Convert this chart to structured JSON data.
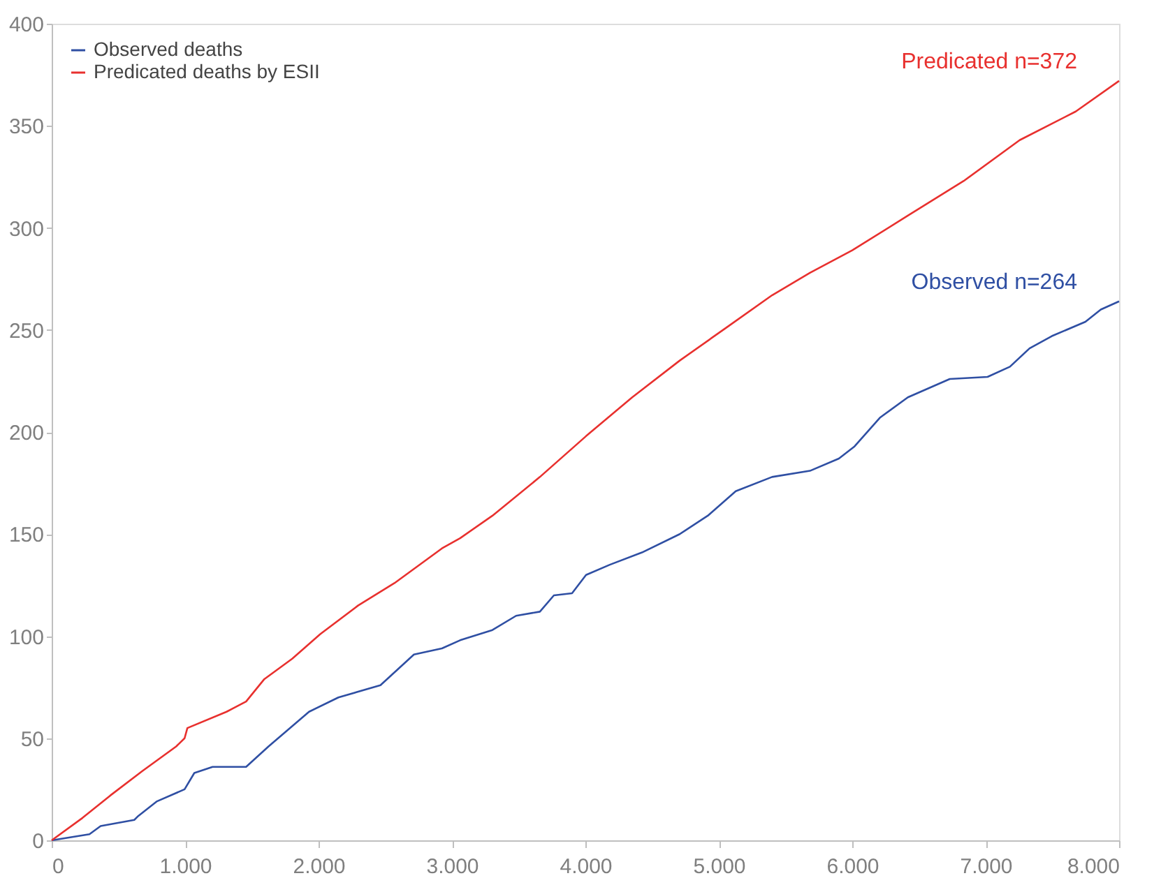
{
  "chart_data": {
    "type": "line",
    "xlim": [
      0,
      8000
    ],
    "ylim": [
      0,
      400
    ],
    "xticks": [
      0,
      {
        "value": 1000,
        "label": "1.000"
      },
      {
        "value": 2000,
        "label": "2.000"
      },
      {
        "value": 3000,
        "label": "3.000"
      },
      {
        "value": 4000,
        "label": "4.000"
      },
      {
        "value": 5000,
        "label": "5.000"
      },
      {
        "value": 6000,
        "label": "6.000"
      },
      {
        "value": 7000,
        "label": "7.000"
      },
      {
        "value": 8000,
        "label": "8.000"
      }
    ],
    "yticks": [
      0,
      50,
      100,
      150,
      200,
      250,
      300,
      350,
      400
    ],
    "grid": false,
    "legend": "top left",
    "marker": "none",
    "line_style": "solid",
    "series": [
      {
        "name": "Observed deaths",
        "color": "#2f4fa3",
        "x": [
          0,
          283,
          367,
          619,
          650,
          786,
          996,
          1069,
          1206,
          1457,
          1625,
          1929,
          2149,
          2464,
          2715,
          2925,
          3061,
          3303,
          3481,
          3659,
          3764,
          3900,
          4005,
          4183,
          4424,
          4707,
          4917,
          5127,
          5399,
          5683,
          5900,
          6018,
          6207,
          6417,
          6731,
          7014,
          7182,
          7329,
          7496,
          7748,
          7863,
          8000
        ],
        "values": [
          0,
          3,
          7,
          10,
          12,
          19,
          25,
          33,
          36,
          36,
          46,
          63,
          70,
          76,
          91,
          94,
          98,
          103,
          110,
          112,
          120,
          121,
          130,
          135,
          141,
          150,
          159,
          171,
          178,
          181,
          187,
          193,
          207,
          217,
          226,
          227,
          232,
          241,
          247,
          254,
          260,
          264
        ]
      },
      {
        "name": "Predicated deaths by ESII",
        "color": "#e8302e",
        "x": [
          0,
          231,
          440,
          681,
          933,
          996,
          1017,
          1311,
          1457,
          1594,
          1803,
          2013,
          2296,
          2569,
          2925,
          3061,
          3303,
          3659,
          4005,
          4351,
          4707,
          5053,
          5399,
          5683,
          6000,
          6417,
          6836,
          7255,
          7675,
          8000
        ],
        "values": [
          0,
          11,
          22,
          34,
          46,
          50,
          55,
          63,
          68,
          79,
          89,
          101,
          115,
          126,
          143,
          148,
          159,
          178,
          198,
          217,
          235,
          251,
          267,
          278,
          289,
          306,
          323,
          343,
          357,
          372
        ]
      }
    ],
    "annotations": [
      {
        "text": "Observed n=264",
        "x": 8000,
        "y": 264
      },
      {
        "text": "Predicated n=372",
        "x": 8000,
        "y": 372
      }
    ]
  }
}
